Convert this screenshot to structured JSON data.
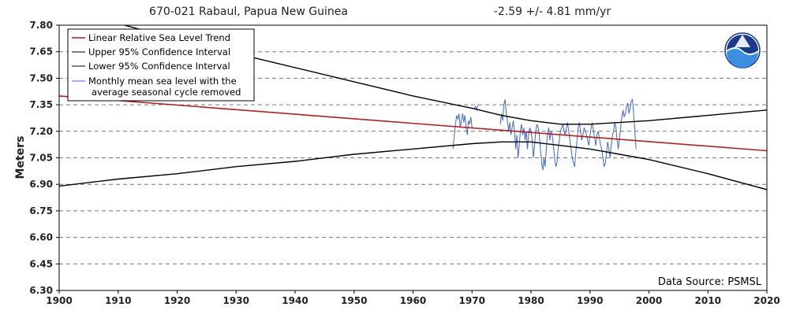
{
  "chart_data": {
    "type": "line",
    "title": "670-021 Rabaul, Papua New Guinea",
    "trend_label": "-2.59 +/-  4.81 mm/yr",
    "ylabel": "Meters",
    "xlabel": "",
    "xlim": [
      1900,
      2020
    ],
    "ylim": [
      6.3,
      7.8
    ],
    "x_ticks": [
      1900,
      1910,
      1920,
      1930,
      1940,
      1950,
      1960,
      1970,
      1980,
      1990,
      2000,
      2010,
      2020
    ],
    "y_ticks": [
      "6.30",
      "6.45",
      "6.60",
      "6.75",
      "6.90",
      "7.05",
      "7.20",
      "7.35",
      "7.50",
      "7.65",
      "7.80"
    ],
    "grid": "horizontal-dashed",
    "legend_position": "top-left",
    "source": "Data Source: PSMSL",
    "colors": {
      "trend": "#aa2222",
      "ci": "#000000",
      "monthly": "#4466cc"
    },
    "series": [
      {
        "name": "Linear Relative Sea Level Trend",
        "color": "#aa2222",
        "x": [
          1900,
          2020
        ],
        "y": [
          7.4,
          7.09
        ]
      },
      {
        "name": "Upper 95% Confidence Interval",
        "color": "#000000",
        "x": [
          1910,
          1920,
          1930,
          1940,
          1950,
          1960,
          1970,
          1975,
          1980,
          1985,
          1990,
          1995,
          2000,
          2010,
          2020
        ],
        "y": [
          7.81,
          7.72,
          7.64,
          7.56,
          7.48,
          7.4,
          7.33,
          7.29,
          7.26,
          7.24,
          7.24,
          7.25,
          7.26,
          7.29,
          7.32
        ]
      },
      {
        "name": "Lower 95% Confidence Interval",
        "color": "#000000",
        "x": [
          1900,
          1910,
          1920,
          1930,
          1940,
          1950,
          1960,
          1970,
          1975,
          1980,
          1985,
          1990,
          1995,
          2000,
          2010,
          2020
        ],
        "y": [
          6.89,
          6.93,
          6.96,
          7.0,
          7.03,
          7.07,
          7.1,
          7.13,
          7.14,
          7.14,
          7.12,
          7.1,
          7.07,
          7.04,
          6.96,
          6.87
        ]
      },
      {
        "name": "Monthly mean sea level with the\naverage seasonal cycle removed",
        "color": "#4466cc",
        "segments": [
          {
            "x": [
              1966.8,
              1967.0,
              1967.2,
              1967.4,
              1967.6,
              1967.8,
              1968.0,
              1968.2,
              1968.4,
              1968.6,
              1968.8,
              1969.0,
              1969.2,
              1969.4,
              1969.6,
              1969.8,
              1970.0
            ],
            "y": [
              7.1,
              7.18,
              7.24,
              7.29,
              7.27,
              7.3,
              7.22,
              7.26,
              7.3,
              7.25,
              7.29,
              7.22,
              7.18,
              7.26,
              7.24,
              7.28,
              7.22
            ]
          },
          {
            "x": [
              1970.4,
              1970.6,
              1970.8,
              1971.0
            ],
            "y": [
              7.33,
              7.34,
              7.32,
              7.35
            ]
          },
          {
            "x": [
              1974.8,
              1975.0,
              1975.2,
              1975.4,
              1975.6,
              1975.8,
              1976.0,
              1976.2,
              1976.4,
              1976.6,
              1976.8,
              1977.0,
              1977.2,
              1977.4,
              1977.6,
              1977.8,
              1978.0,
              1978.2,
              1978.4,
              1978.6,
              1978.8,
              1979.0,
              1979.2,
              1979.4,
              1979.6,
              1979.8,
              1980.0,
              1980.2,
              1980.4,
              1980.6,
              1980.8,
              1981.0,
              1981.2,
              1981.4,
              1981.6,
              1981.8,
              1982.0,
              1982.2,
              1982.4,
              1982.6,
              1982.8,
              1983.0,
              1983.2,
              1983.4,
              1983.6,
              1983.8,
              1984.0,
              1984.2,
              1984.4,
              1984.6,
              1984.8,
              1985.0,
              1985.2,
              1985.4,
              1985.6,
              1985.8,
              1986.0,
              1986.2,
              1986.4,
              1986.6,
              1986.8,
              1987.0,
              1987.2,
              1987.4,
              1987.6,
              1987.8,
              1988.0,
              1988.2,
              1988.4,
              1988.6,
              1988.8,
              1989.0,
              1989.2,
              1989.4,
              1989.6,
              1989.8,
              1990.0,
              1990.2,
              1990.4,
              1990.6,
              1990.8,
              1991.0,
              1991.2,
              1991.4,
              1991.6,
              1991.8,
              1992.0,
              1992.2,
              1992.4,
              1992.6,
              1992.8,
              1993.0,
              1993.2,
              1993.4,
              1993.6,
              1993.8,
              1994.0,
              1994.2,
              1994.4,
              1994.6,
              1994.8,
              1995.0,
              1995.2,
              1995.4,
              1995.6,
              1995.8,
              1996.0,
              1996.2,
              1996.4,
              1996.6,
              1996.8,
              1997.0,
              1997.2,
              1997.4,
              1997.6,
              1997.8
            ],
            "y": [
              7.24,
              7.3,
              7.26,
              7.35,
              7.38,
              7.3,
              7.26,
              7.2,
              7.25,
              7.18,
              7.22,
              7.26,
              7.2,
              7.1,
              7.18,
              7.05,
              7.12,
              7.2,
              7.24,
              7.18,
              7.22,
              7.15,
              7.2,
              7.1,
              7.18,
              7.22,
              7.2,
              7.15,
              7.05,
              7.12,
              7.2,
              7.24,
              7.22,
              7.18,
              7.1,
              7.02,
              6.98,
              7.05,
              7.0,
              7.1,
              7.18,
              7.22,
              7.15,
              7.2,
              7.18,
              7.12,
              7.05,
              7.0,
              7.02,
              7.1,
              7.15,
              7.2,
              7.22,
              7.24,
              7.2,
              7.18,
              7.22,
              7.25,
              7.2,
              7.15,
              7.1,
              7.05,
              7.02,
              7.0,
              7.08,
              7.15,
              7.22,
              7.25,
              7.2,
              7.15,
              7.18,
              7.22,
              7.2,
              7.18,
              7.15,
              7.12,
              7.18,
              7.22,
              7.25,
              7.2,
              7.16,
              7.12,
              7.18,
              7.2,
              7.16,
              7.12,
              7.1,
              7.05,
              7.0,
              7.02,
              7.08,
              7.14,
              7.1,
              7.05,
              7.12,
              7.18,
              7.2,
              7.25,
              7.22,
              7.15,
              7.1,
              7.16,
              7.22,
              7.28,
              7.32,
              7.28,
              7.3,
              7.34,
              7.36,
              7.3,
              7.33,
              7.37,
              7.38,
              7.3,
              7.2,
              7.1
            ]
          }
        ]
      }
    ]
  }
}
